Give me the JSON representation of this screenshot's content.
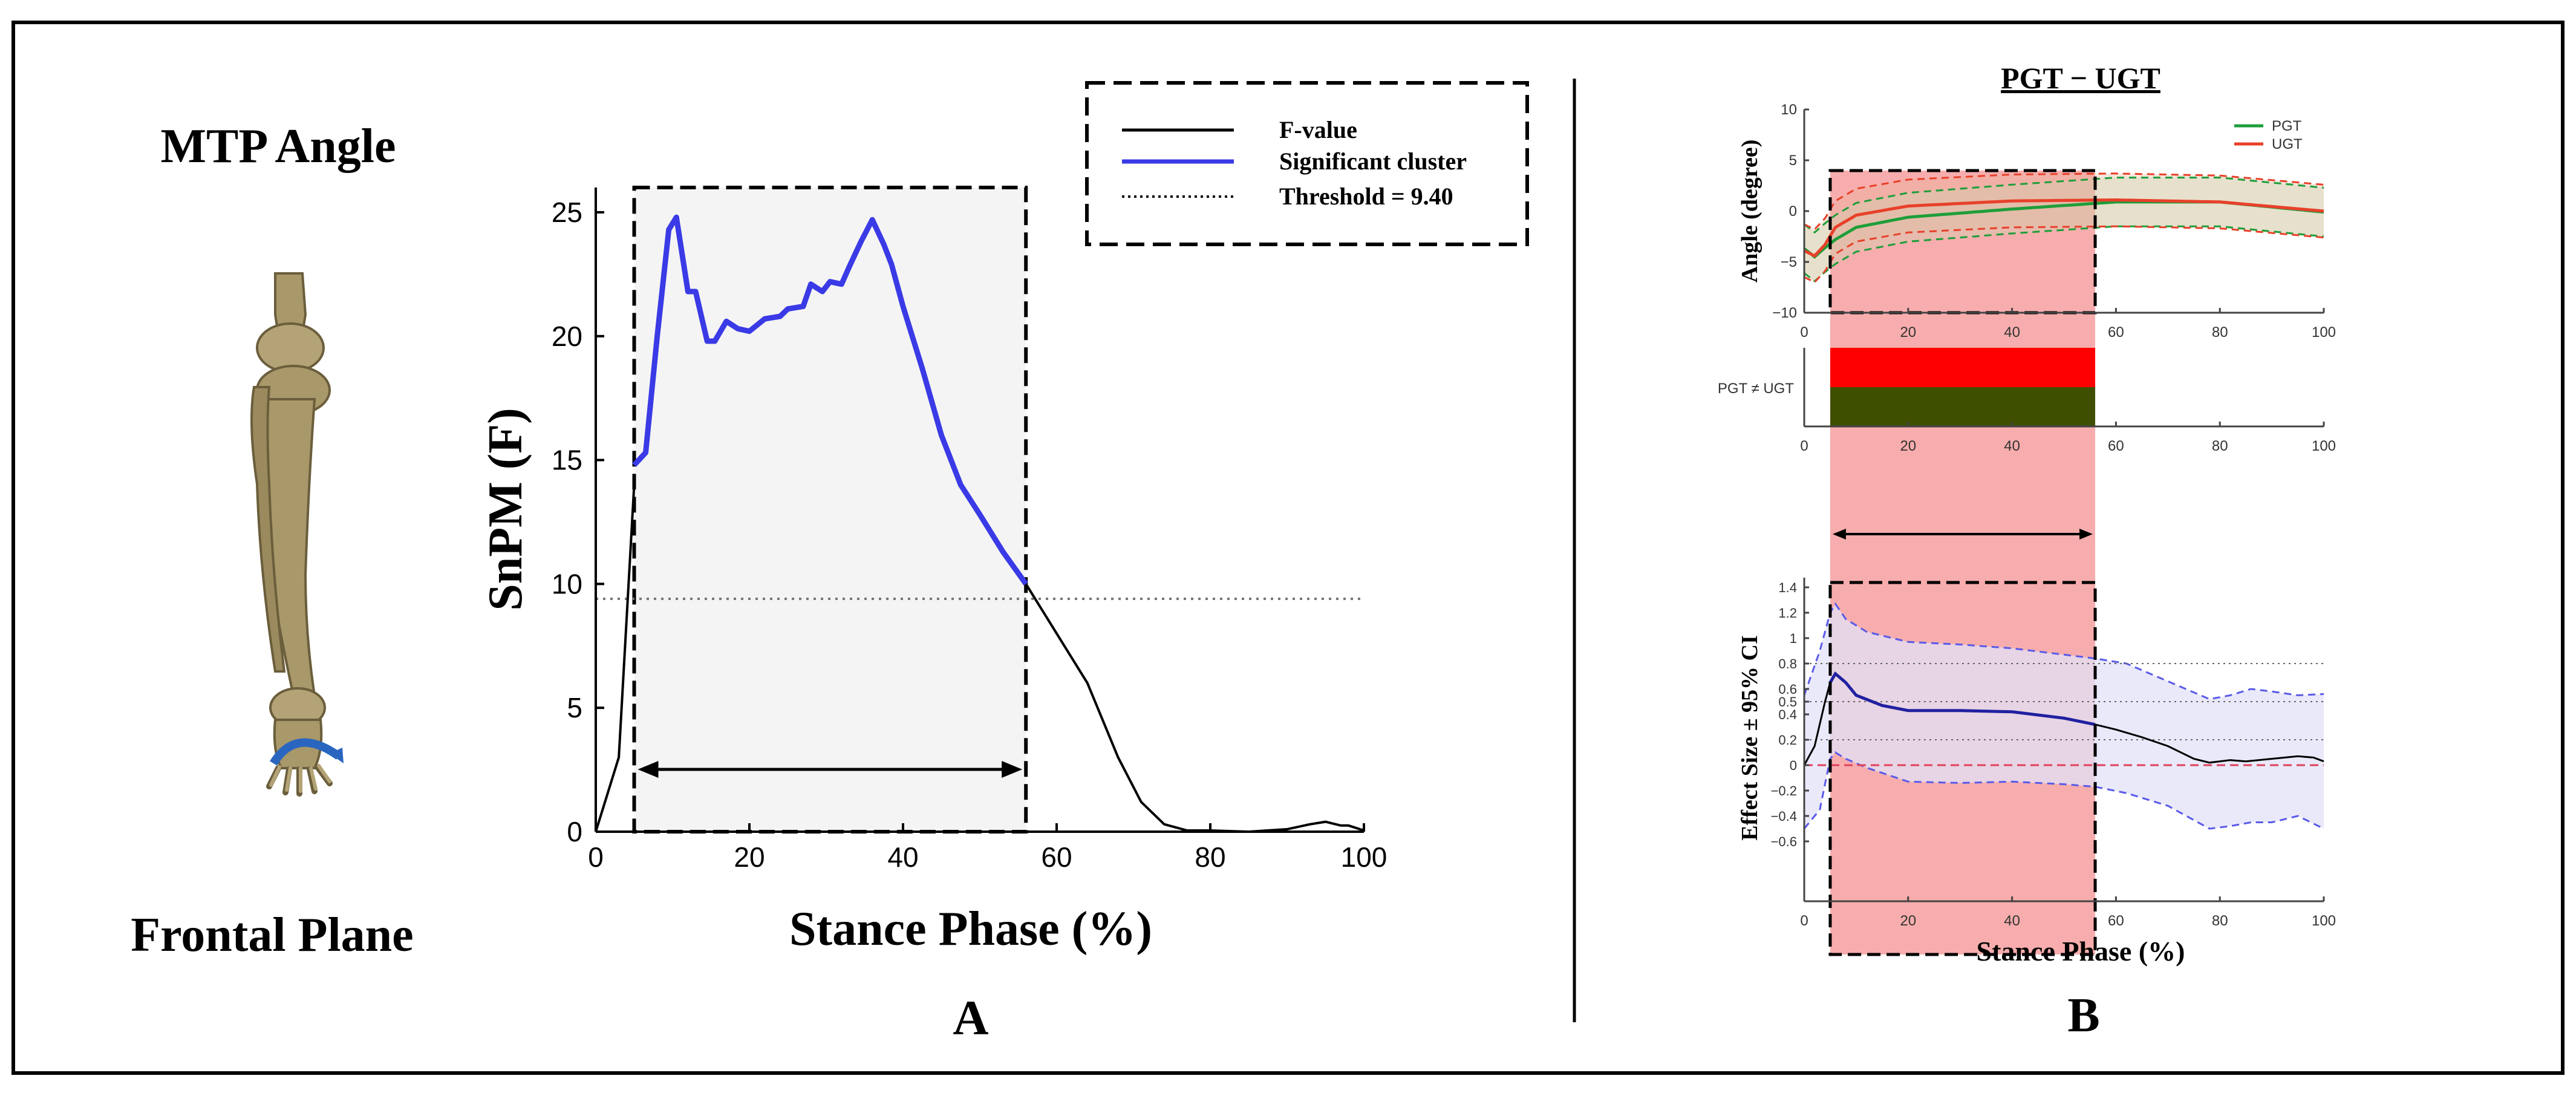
{
  "left": {
    "title": "MTP Angle",
    "subtitle": "Frontal Plane"
  },
  "panel_a_label": "A",
  "panel_b_label": "B",
  "panel_b_title": "PGT − UGT",
  "colors": {
    "fvalue": "#000000",
    "cluster": "#3a3ae6",
    "pgt": "#1e9e3a",
    "ugt": "#e8402a",
    "sig_shade": "#f7a9a9",
    "red_bar": "#ff0000",
    "olive_bar": "#3f4f00",
    "ci_fill": "#e2e2f8",
    "ci_line": "#5a5ae8",
    "bone": "#a8986a",
    "arrow_blue": "#2a66c0"
  },
  "chart_data": [
    {
      "id": "snpm",
      "type": "line",
      "xlabel": "Stance Phase (%)",
      "ylabel": "SnPM (F)",
      "xlim": [
        0,
        100
      ],
      "ylim": [
        0,
        26
      ],
      "xticks": [
        0,
        20,
        40,
        60,
        80,
        100
      ],
      "yticks": [
        0,
        5,
        10,
        15,
        20,
        25
      ],
      "threshold": 9.4,
      "cluster_range": [
        5,
        56
      ],
      "legend": {
        "position": "top-right",
        "entries": [
          "F-value",
          "Significant cluster",
          "Threshold = 9.40"
        ]
      },
      "series": [
        {
          "name": "F-value",
          "x": [
            0,
            3,
            5,
            56,
            60,
            64,
            68,
            71,
            74,
            77,
            80,
            85,
            90,
            93,
            95,
            97,
            98,
            100
          ],
          "y": [
            0,
            3,
            14,
            10,
            8,
            6,
            3,
            1.2,
            0.3,
            0.05,
            0.05,
            0,
            0.1,
            0.3,
            0.4,
            0.25,
            0.25,
            0.05
          ]
        },
        {
          "name": "Significant cluster",
          "x": [
            5,
            6.5,
            8,
            9.5,
            10.5,
            12,
            13,
            14.5,
            15.5,
            17,
            18.5,
            20,
            22,
            24,
            25,
            27,
            28,
            29.5,
            30.5,
            32,
            33,
            34.5,
            36,
            37.5,
            38.5,
            40,
            42.5,
            45,
            47.5,
            50,
            53,
            56
          ],
          "y": [
            14.8,
            15.3,
            20,
            24.3,
            24.8,
            21.8,
            21.8,
            19.8,
            19.8,
            20.6,
            20.3,
            20.2,
            20.7,
            20.8,
            21.1,
            21.2,
            22.1,
            21.8,
            22.2,
            22.1,
            22.8,
            23.8,
            24.7,
            23.7,
            22.9,
            21.2,
            18.7,
            16,
            14,
            12.8,
            11.3,
            10
          ]
        }
      ]
    },
    {
      "id": "angle",
      "type": "line",
      "ylabel": "Angle (degree)",
      "xlim": [
        0,
        100
      ],
      "ylim": [
        -10,
        10
      ],
      "xticks": [
        0,
        20,
        40,
        60,
        80,
        100
      ],
      "yticks": [
        -10,
        -5,
        0,
        5,
        10
      ],
      "sig_range": [
        5,
        56
      ],
      "legend": {
        "position": "top-right",
        "entries": [
          "PGT",
          "UGT"
        ]
      },
      "series": [
        {
          "name": "PGT",
          "x": [
            0,
            2,
            4,
            6,
            10,
            20,
            40,
            60,
            80,
            100
          ],
          "y": [
            -3.7,
            -4.5,
            -3.6,
            -2.8,
            -1.6,
            -0.6,
            0.2,
            0.9,
            0.9,
            -0.1
          ],
          "sd": 2.4
        },
        {
          "name": "UGT",
          "x": [
            0,
            2,
            4,
            6,
            10,
            20,
            40,
            60,
            80,
            100
          ],
          "y": [
            -3.9,
            -4.4,
            -3.3,
            -1.6,
            -0.4,
            0.5,
            1.0,
            1.1,
            0.9,
            0
          ],
          "sd": 2.6
        }
      ]
    },
    {
      "id": "cluster-bar",
      "type": "bar",
      "ylabel": "PGT ≠ UGT",
      "xlim": [
        0,
        100
      ],
      "xticks": [
        0,
        20,
        40,
        60,
        80,
        100
      ],
      "range": [
        5,
        56
      ]
    },
    {
      "id": "effect",
      "type": "line",
      "xlabel": "Stance Phase (%)",
      "ylabel": "Effect Size ± 95% CI",
      "xlim": [
        0,
        100
      ],
      "ylim": [
        -0.8,
        1.5
      ],
      "xticks": [
        0,
        20,
        40,
        60,
        80,
        100
      ],
      "yticks": [
        -0.6,
        -0.4,
        -0.2,
        0,
        0.2,
        0.4,
        0.5,
        0.6,
        0.8,
        1,
        1.2,
        1.4
      ],
      "ref_lines": [
        0.8,
        0.5,
        0.2
      ],
      "zero_line": 0,
      "sig_range": [
        5,
        56
      ],
      "series": [
        {
          "name": "Effect size",
          "x": [
            0,
            2,
            4,
            5,
            6,
            8,
            10,
            15,
            20,
            30,
            40,
            50,
            56,
            60,
            65,
            70,
            75,
            78,
            80,
            82,
            85,
            90,
            95,
            98,
            100
          ],
          "y": [
            0,
            0.15,
            0.5,
            0.65,
            0.72,
            0.65,
            0.55,
            0.47,
            0.43,
            0.43,
            0.42,
            0.37,
            0.32,
            0.28,
            0.22,
            0.15,
            0.05,
            0.02,
            0.03,
            0.04,
            0.03,
            0.05,
            0.07,
            0.06,
            0.03
          ]
        },
        {
          "name": "CI upper",
          "x": [
            0,
            3,
            5,
            6,
            8,
            12,
            20,
            30,
            40,
            50,
            56,
            62,
            70,
            78,
            82,
            86,
            90,
            95,
            100
          ],
          "y": [
            0.55,
            0.9,
            1.2,
            1.27,
            1.15,
            1.05,
            0.97,
            0.95,
            0.92,
            0.87,
            0.84,
            0.8,
            0.66,
            0.52,
            0.55,
            0.6,
            0.58,
            0.55,
            0.56
          ]
        },
        {
          "name": "CI lower",
          "x": [
            0,
            3,
            5,
            6,
            8,
            12,
            20,
            30,
            40,
            50,
            56,
            62,
            70,
            78,
            82,
            86,
            90,
            95,
            100
          ],
          "y": [
            -0.5,
            -0.35,
            0.05,
            0.1,
            0.05,
            -0.02,
            -0.13,
            -0.14,
            -0.13,
            -0.15,
            -0.17,
            -0.22,
            -0.32,
            -0.5,
            -0.48,
            -0.45,
            -0.45,
            -0.4,
            -0.5
          ]
        }
      ]
    }
  ]
}
